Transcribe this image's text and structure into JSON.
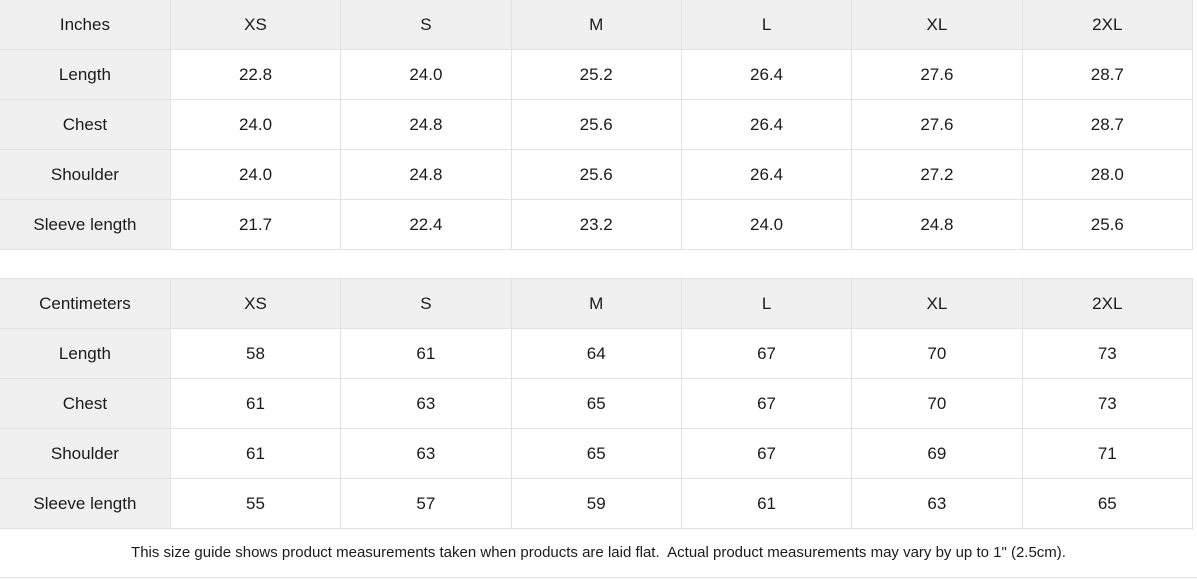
{
  "colors": {
    "header_cell_bg": "#f0f0f0",
    "border": "#e2e2e2",
    "text": "#1b1b1b",
    "background": "#ffffff"
  },
  "tables": [
    {
      "unit_label": "Inches",
      "size_headers": [
        "XS",
        "S",
        "M",
        "L",
        "XL",
        "2XL"
      ],
      "rows": [
        {
          "label": "Length",
          "values": [
            "22.8",
            "24.0",
            "25.2",
            "26.4",
            "27.6",
            "28.7"
          ]
        },
        {
          "label": "Chest",
          "values": [
            "24.0",
            "24.8",
            "25.6",
            "26.4",
            "27.6",
            "28.7"
          ]
        },
        {
          "label": "Shoulder",
          "values": [
            "24.0",
            "24.8",
            "25.6",
            "26.4",
            "27.2",
            "28.0"
          ]
        },
        {
          "label": "Sleeve length",
          "values": [
            "21.7",
            "22.4",
            "23.2",
            "24.0",
            "24.8",
            "25.6"
          ]
        }
      ]
    },
    {
      "unit_label": "Centimeters",
      "size_headers": [
        "XS",
        "S",
        "M",
        "L",
        "XL",
        "2XL"
      ],
      "rows": [
        {
          "label": "Length",
          "values": [
            "58",
            "61",
            "64",
            "67",
            "70",
            "73"
          ]
        },
        {
          "label": "Chest",
          "values": [
            "61",
            "63",
            "65",
            "67",
            "70",
            "73"
          ]
        },
        {
          "label": "Shoulder",
          "values": [
            "61",
            "63",
            "65",
            "67",
            "69",
            "71"
          ]
        },
        {
          "label": "Sleeve length",
          "values": [
            "55",
            "57",
            "59",
            "61",
            "63",
            "65"
          ]
        }
      ]
    }
  ],
  "footer": {
    "note": "This size guide shows product measurements taken when products are laid flat.  Actual product measurements may vary by up to 1\" (2.5cm)."
  }
}
